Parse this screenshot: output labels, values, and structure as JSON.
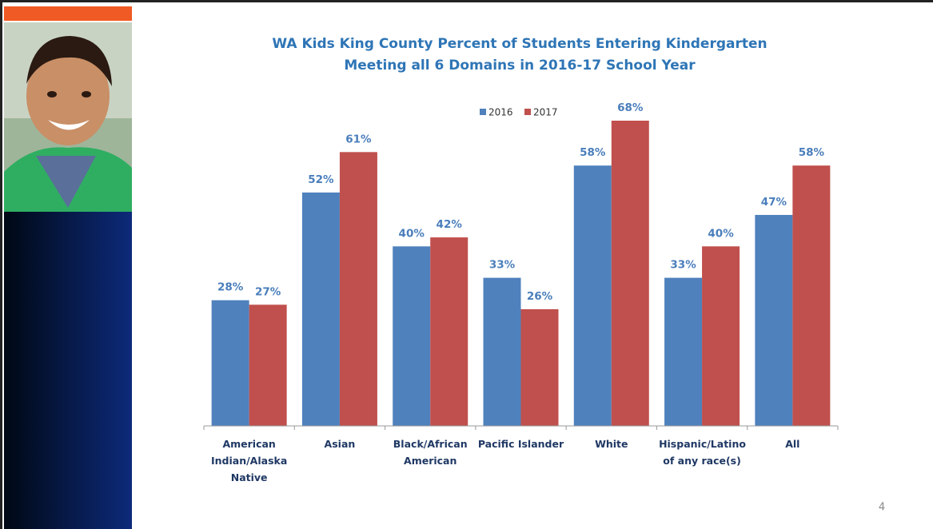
{
  "chart_data": {
    "type": "bar",
    "title": [
      "WA Kids King County Percent of Students Entering Kindergarten",
      "Meeting all 6 Domains in 2016-17 School Year"
    ],
    "categories": [
      "American Indian/Alaska Native",
      "Asian",
      "Black/African American",
      "Pacific Islander",
      "White",
      "Hispanic/Latino of any race(s)",
      "All"
    ],
    "series": [
      {
        "name": "2016",
        "color": "#4f81bd",
        "values": [
          28,
          52,
          40,
          33,
          58,
          33,
          47
        ],
        "value_labels": [
          "28%",
          "52%",
          "40%",
          "33%",
          "58%",
          "33%",
          "47%"
        ]
      },
      {
        "name": "2017",
        "color": "#c0504d",
        "values": [
          27,
          61,
          42,
          26,
          68,
          40,
          58
        ],
        "value_labels": [
          "27%",
          "61%",
          "42%",
          "26%",
          "68%",
          "40%",
          "58%"
        ]
      }
    ]
  },
  "page_number": "4"
}
